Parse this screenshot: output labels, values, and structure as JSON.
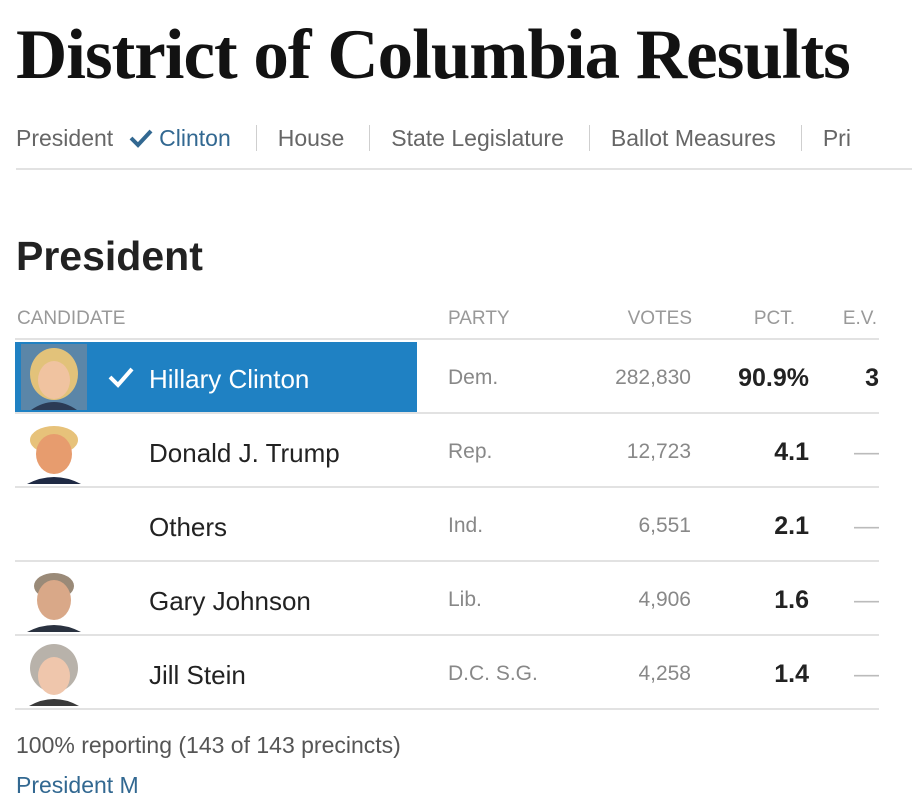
{
  "title": "District of Columbia Results",
  "nav": {
    "president_label": "President",
    "winner_label": "Clinton",
    "items": [
      "House",
      "State Legislature",
      "Ballot Measures",
      "Pri"
    ]
  },
  "section_title": "President",
  "table": {
    "headers": {
      "candidate": "CANDIDATE",
      "party": "PARTY",
      "votes": "VOTES",
      "pct": "PCT.",
      "ev": "E.V."
    },
    "rows": [
      {
        "name": "Hillary Clinton",
        "party": "Dem.",
        "votes": "282,830",
        "pct": "90.9%",
        "ev": "3",
        "winner": true,
        "photo": "clinton-photo"
      },
      {
        "name": "Donald J. Trump",
        "party": "Rep.",
        "votes": "12,723",
        "pct": "4.1",
        "ev": "—",
        "winner": false,
        "photo": "trump-photo"
      },
      {
        "name": "Others",
        "party": "Ind.",
        "votes": "6,551",
        "pct": "2.1",
        "ev": "—",
        "winner": false,
        "photo": ""
      },
      {
        "name": "Gary Johnson",
        "party": "Lib.",
        "votes": "4,906",
        "pct": "1.6",
        "ev": "—",
        "winner": false,
        "photo": "johnson-photo"
      },
      {
        "name": "Jill Stein",
        "party": "D.C. S.G.",
        "votes": "4,258",
        "pct": "1.4",
        "ev": "—",
        "winner": false,
        "photo": "stein-photo"
      }
    ]
  },
  "footer": "100% reporting (143 of 143 precincts)",
  "bottom_link": "President M",
  "colors": {
    "winner_bg": "#1f81c3",
    "link": "#326891"
  }
}
